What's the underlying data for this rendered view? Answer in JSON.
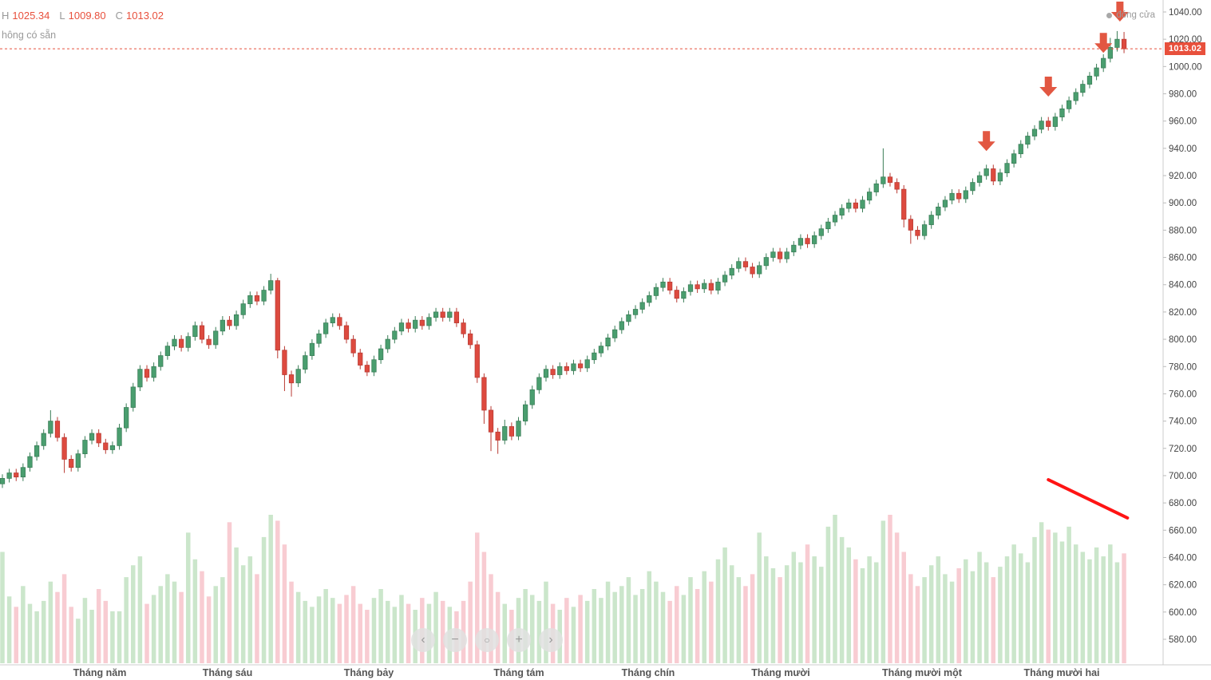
{
  "header": {
    "ohlc": {
      "h_label": "H",
      "h": "1025.34",
      "l_label": "L",
      "l": "1009.80",
      "c_label": "C",
      "c": "1013.02"
    },
    "subtitle": "hông có sẵn",
    "legend": {
      "label": "đóng cửa"
    }
  },
  "price_tag": "1013.02",
  "nav": {
    "buttons": [
      {
        "name": "pan-left",
        "glyph": "‹"
      },
      {
        "name": "zoom-out",
        "glyph": "−"
      },
      {
        "name": "reset",
        "glyph": "○"
      },
      {
        "name": "zoom-in",
        "glyph": "+"
      },
      {
        "name": "pan-right",
        "glyph": "›"
      }
    ]
  },
  "colors": {
    "up": "#4a9e6f",
    "up_stroke": "#3a7d57",
    "down": "#dd4a3f",
    "down_stroke": "#b83a33",
    "vol_up": "#cbe6cb",
    "vol_down": "#f8ccd2",
    "accent": "#e8503c",
    "trendline": "#ff1414",
    "arrow": "#e25742",
    "axis_line": "#cccccc",
    "axis_text": "#444444",
    "month_text": "#555555"
  },
  "chart_data": {
    "type": "candlestick",
    "title": "",
    "x_labels": [
      "Tháng năm",
      "Tháng sáu",
      "Tháng bảy",
      "Tháng tám",
      "Tháng chín",
      "Tháng mười",
      "Tháng mười một",
      "Tháng mười hai"
    ],
    "y_axis": {
      "max": 1040,
      "min": 580,
      "step": 20,
      "decimals": 2
    },
    "close_line": 1013.02,
    "last": {
      "high": 1025.34,
      "low": 1009.8,
      "close": 1013.02
    },
    "candles": [
      [
        694,
        701,
        691,
        698
      ],
      [
        698,
        705,
        695,
        702
      ],
      [
        702,
        705,
        696,
        699
      ],
      [
        699,
        709,
        696,
        706
      ],
      [
        706,
        717,
        703,
        714
      ],
      [
        714,
        725,
        711,
        722
      ],
      [
        722,
        734,
        719,
        731
      ],
      [
        731,
        748,
        728,
        740
      ],
      [
        740,
        743,
        725,
        728
      ],
      [
        728,
        731,
        702,
        712
      ],
      [
        712,
        715,
        703,
        706
      ],
      [
        706,
        719,
        703,
        716
      ],
      [
        716,
        729,
        713,
        726
      ],
      [
        726,
        734,
        723,
        731
      ],
      [
        731,
        734,
        721,
        724
      ],
      [
        724,
        727,
        716,
        719
      ],
      [
        719,
        725,
        716,
        722
      ],
      [
        722,
        738,
        719,
        735
      ],
      [
        735,
        753,
        732,
        750
      ],
      [
        750,
        768,
        747,
        765
      ],
      [
        765,
        781,
        762,
        778
      ],
      [
        778,
        781,
        769,
        772
      ],
      [
        772,
        783,
        769,
        780
      ],
      [
        780,
        791,
        777,
        788
      ],
      [
        788,
        798,
        785,
        795
      ],
      [
        795,
        803,
        792,
        800
      ],
      [
        800,
        803,
        791,
        794
      ],
      [
        794,
        805,
        791,
        802
      ],
      [
        802,
        813,
        799,
        810
      ],
      [
        810,
        813,
        797,
        800
      ],
      [
        800,
        803,
        793,
        796
      ],
      [
        796,
        809,
        793,
        806
      ],
      [
        806,
        817,
        803,
        814
      ],
      [
        814,
        817,
        807,
        810
      ],
      [
        810,
        821,
        807,
        818
      ],
      [
        818,
        829,
        815,
        826
      ],
      [
        826,
        835,
        823,
        832
      ],
      [
        832,
        835,
        825,
        828
      ],
      [
        828,
        839,
        825,
        836
      ],
      [
        836,
        848,
        833,
        843
      ],
      [
        843,
        845,
        786,
        792
      ],
      [
        792,
        795,
        762,
        774
      ],
      [
        774,
        777,
        758,
        768
      ],
      [
        768,
        781,
        765,
        778
      ],
      [
        778,
        791,
        775,
        788
      ],
      [
        788,
        800,
        785,
        797
      ],
      [
        797,
        807,
        794,
        804
      ],
      [
        804,
        815,
        801,
        812
      ],
      [
        812,
        819,
        809,
        816
      ],
      [
        816,
        819,
        807,
        810
      ],
      [
        810,
        813,
        797,
        800
      ],
      [
        800,
        803,
        787,
        790
      ],
      [
        790,
        793,
        778,
        781
      ],
      [
        781,
        784,
        773,
        776
      ],
      [
        776,
        788,
        773,
        785
      ],
      [
        785,
        796,
        782,
        793
      ],
      [
        793,
        803,
        790,
        800
      ],
      [
        800,
        809,
        797,
        806
      ],
      [
        806,
        815,
        803,
        812
      ],
      [
        812,
        815,
        805,
        808
      ],
      [
        808,
        817,
        805,
        814
      ],
      [
        814,
        817,
        807,
        810
      ],
      [
        810,
        819,
        807,
        816
      ],
      [
        816,
        823,
        813,
        820
      ],
      [
        820,
        823,
        813,
        816
      ],
      [
        816,
        823,
        813,
        820
      ],
      [
        820,
        823,
        809,
        812
      ],
      [
        812,
        815,
        801,
        804
      ],
      [
        804,
        807,
        793,
        796
      ],
      [
        796,
        799,
        768,
        772
      ],
      [
        772,
        775,
        738,
        748
      ],
      [
        748,
        751,
        718,
        732
      ],
      [
        732,
        735,
        716,
        726
      ],
      [
        726,
        741,
        723,
        736
      ],
      [
        736,
        739,
        726,
        729
      ],
      [
        729,
        743,
        726,
        740
      ],
      [
        740,
        755,
        737,
        752
      ],
      [
        752,
        766,
        749,
        763
      ],
      [
        763,
        775,
        760,
        772
      ],
      [
        772,
        781,
        769,
        778
      ],
      [
        778,
        781,
        771,
        774
      ],
      [
        774,
        783,
        771,
        780
      ],
      [
        780,
        783,
        774,
        777
      ],
      [
        777,
        785,
        774,
        782
      ],
      [
        782,
        785,
        776,
        779
      ],
      [
        779,
        788,
        776,
        785
      ],
      [
        785,
        793,
        782,
        790
      ],
      [
        790,
        798,
        787,
        795
      ],
      [
        795,
        804,
        792,
        801
      ],
      [
        801,
        810,
        798,
        807
      ],
      [
        807,
        816,
        804,
        813
      ],
      [
        813,
        821,
        810,
        818
      ],
      [
        818,
        825,
        815,
        822
      ],
      [
        822,
        830,
        819,
        827
      ],
      [
        827,
        835,
        824,
        832
      ],
      [
        832,
        841,
        829,
        838
      ],
      [
        838,
        845,
        835,
        842
      ],
      [
        842,
        845,
        833,
        836
      ],
      [
        836,
        839,
        827,
        830
      ],
      [
        830,
        838,
        827,
        835
      ],
      [
        835,
        843,
        832,
        840
      ],
      [
        840,
        843,
        834,
        837
      ],
      [
        837,
        844,
        834,
        841
      ],
      [
        841,
        844,
        833,
        836
      ],
      [
        836,
        845,
        833,
        842
      ],
      [
        842,
        850,
        839,
        847
      ],
      [
        847,
        855,
        844,
        852
      ],
      [
        852,
        860,
        849,
        857
      ],
      [
        857,
        860,
        850,
        853
      ],
      [
        853,
        856,
        845,
        848
      ],
      [
        848,
        857,
        845,
        854
      ],
      [
        854,
        863,
        851,
        860
      ],
      [
        860,
        867,
        857,
        864
      ],
      [
        864,
        867,
        856,
        859
      ],
      [
        859,
        867,
        856,
        864
      ],
      [
        864,
        872,
        861,
        869
      ],
      [
        869,
        877,
        866,
        874
      ],
      [
        874,
        877,
        867,
        870
      ],
      [
        870,
        879,
        867,
        876
      ],
      [
        876,
        884,
        873,
        881
      ],
      [
        881,
        889,
        878,
        886
      ],
      [
        886,
        894,
        883,
        891
      ],
      [
        891,
        899,
        888,
        896
      ],
      [
        896,
        903,
        893,
        900
      ],
      [
        900,
        903,
        893,
        896
      ],
      [
        896,
        905,
        893,
        902
      ],
      [
        902,
        911,
        899,
        908
      ],
      [
        908,
        917,
        905,
        914
      ],
      [
        914,
        940,
        911,
        919
      ],
      [
        919,
        922,
        912,
        915
      ],
      [
        915,
        918,
        907,
        910
      ],
      [
        910,
        913,
        882,
        888
      ],
      [
        888,
        891,
        870,
        880
      ],
      [
        880,
        883,
        873,
        876
      ],
      [
        876,
        887,
        873,
        884
      ],
      [
        884,
        894,
        881,
        891
      ],
      [
        891,
        900,
        888,
        897
      ],
      [
        897,
        905,
        894,
        902
      ],
      [
        902,
        910,
        899,
        907
      ],
      [
        907,
        910,
        900,
        903
      ],
      [
        903,
        912,
        900,
        909
      ],
      [
        909,
        918,
        906,
        915
      ],
      [
        915,
        923,
        912,
        920
      ],
      [
        920,
        928,
        917,
        925
      ],
      [
        925,
        928,
        913,
        916
      ],
      [
        916,
        925,
        913,
        922
      ],
      [
        922,
        932,
        919,
        929
      ],
      [
        929,
        939,
        926,
        936
      ],
      [
        936,
        946,
        933,
        943
      ],
      [
        943,
        952,
        940,
        949
      ],
      [
        949,
        957,
        946,
        954
      ],
      [
        954,
        963,
        951,
        960
      ],
      [
        960,
        963,
        953,
        956
      ],
      [
        956,
        966,
        953,
        963
      ],
      [
        963,
        972,
        960,
        969
      ],
      [
        969,
        978,
        966,
        975
      ],
      [
        975,
        984,
        972,
        981
      ],
      [
        981,
        990,
        978,
        987
      ],
      [
        987,
        996,
        984,
        993
      ],
      [
        993,
        1002,
        990,
        999
      ],
      [
        999,
        1009,
        996,
        1006
      ],
      [
        1006,
        1021,
        1003,
        1014
      ],
      [
        1014,
        1026,
        1011,
        1020
      ],
      [
        1020,
        1025.34,
        1009.8,
        1013.02
      ]
    ],
    "volumes": [
      75,
      45,
      38,
      52,
      40,
      35,
      42,
      55,
      48,
      60,
      38,
      30,
      44,
      36,
      50,
      42,
      35,
      35,
      58,
      66,
      72,
      40,
      46,
      52,
      60,
      55,
      48,
      88,
      70,
      62,
      45,
      52,
      58,
      95,
      78,
      66,
      72,
      60,
      85,
      100,
      96,
      80,
      55,
      48,
      42,
      38,
      45,
      50,
      44,
      40,
      46,
      52,
      40,
      36,
      44,
      50,
      42,
      38,
      46,
      40,
      36,
      44,
      40,
      48,
      42,
      38,
      35,
      42,
      55,
      88,
      75,
      60,
      48,
      40,
      36,
      44,
      50,
      46,
      42,
      55,
      40,
      36,
      44,
      38,
      46,
      42,
      50,
      44,
      55,
      48,
      52,
      58,
      46,
      50,
      62,
      55,
      48,
      42,
      52,
      46,
      58,
      50,
      62,
      55,
      70,
      78,
      66,
      58,
      52,
      60,
      88,
      72,
      64,
      58,
      66,
      75,
      68,
      80,
      72,
      65,
      92,
      100,
      85,
      78,
      70,
      64,
      72,
      68,
      96,
      100,
      88,
      75,
      60,
      52,
      58,
      66,
      72,
      60,
      55,
      64,
      70,
      62,
      75,
      68,
      58,
      65,
      72,
      80,
      74,
      68,
      85,
      95,
      90,
      88,
      82,
      92,
      80,
      75,
      70,
      78,
      72,
      80,
      68,
      74
    ],
    "annotations": {
      "arrows": [
        {
          "index": 143,
          "price": 938
        },
        {
          "index": 152,
          "price": 978
        },
        {
          "index": 160,
          "price": 1010
        },
        {
          "index": 162.4,
          "price": 1033
        }
      ],
      "trendline": {
        "from": {
          "index": 152,
          "price": 697
        },
        "to": {
          "index": 163.5,
          "price": 669
        }
      }
    }
  }
}
